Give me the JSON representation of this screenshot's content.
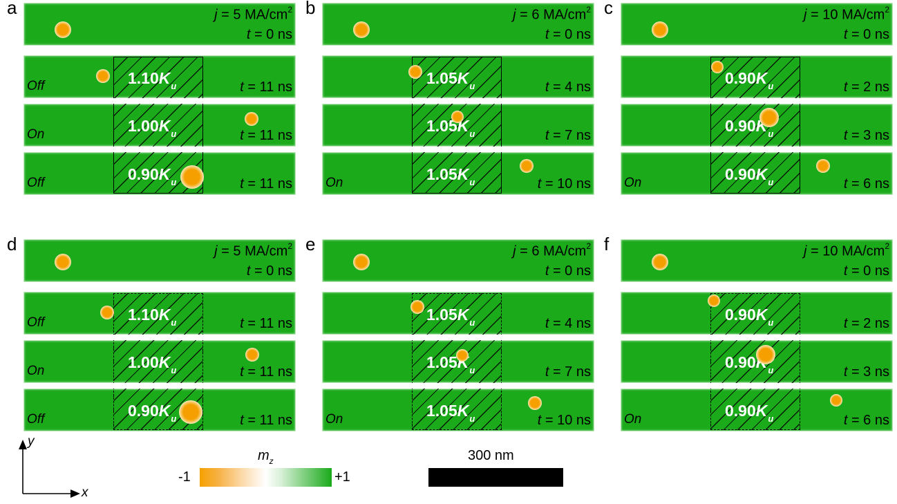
{
  "panels": [
    {
      "letter": "a",
      "j": "5",
      "dashed": false,
      "rows": [
        {
          "t": "0",
          "state": ""
        },
        {
          "t": "11",
          "state": "Off",
          "aniso": "1.10"
        },
        {
          "t": "11",
          "state": "On",
          "aniso": "1.00"
        },
        {
          "t": "11",
          "state": "Off",
          "aniso": "0.90"
        }
      ]
    },
    {
      "letter": "b",
      "j": "6",
      "dashed": false,
      "rows": [
        {
          "t": "0",
          "state": ""
        },
        {
          "t": "4",
          "state": "",
          "aniso": "1.05"
        },
        {
          "t": "7",
          "state": "",
          "aniso": "1.05"
        },
        {
          "t": "10",
          "state": "On",
          "aniso": "1.05"
        }
      ]
    },
    {
      "letter": "c",
      "j": "10",
      "dashed": false,
      "rows": [
        {
          "t": "0",
          "state": ""
        },
        {
          "t": "2",
          "state": "",
          "aniso": "0.90"
        },
        {
          "t": "3",
          "state": "",
          "aniso": "0.90"
        },
        {
          "t": "6",
          "state": "On",
          "aniso": "0.90"
        }
      ]
    },
    {
      "letter": "d",
      "j": "5",
      "dashed": true,
      "rows": [
        {
          "t": "0",
          "state": ""
        },
        {
          "t": "11",
          "state": "Off",
          "aniso": "1.10"
        },
        {
          "t": "11",
          "state": "On",
          "aniso": "1.00"
        },
        {
          "t": "11",
          "state": "Off",
          "aniso": "0.90"
        }
      ]
    },
    {
      "letter": "e",
      "j": "6",
      "dashed": true,
      "rows": [
        {
          "t": "0",
          "state": ""
        },
        {
          "t": "4",
          "state": "",
          "aniso": "1.05"
        },
        {
          "t": "7",
          "state": "",
          "aniso": "1.05"
        },
        {
          "t": "10",
          "state": "On",
          "aniso": "1.05"
        }
      ]
    },
    {
      "letter": "f",
      "j": "10",
      "dashed": true,
      "rows": [
        {
          "t": "0",
          "state": ""
        },
        {
          "t": "2",
          "state": "",
          "aniso": "0.90"
        },
        {
          "t": "3",
          "state": "",
          "aniso": "0.90"
        },
        {
          "t": "6",
          "state": "On",
          "aniso": "0.90"
        }
      ]
    }
  ],
  "labels": {
    "j_symbol": "j",
    "j_unit": " MA/cm",
    "j_unit_exp": "2",
    "t_symbol": "t",
    "t_unit": " ns",
    "equals": " = ",
    "k_symbol": "K",
    "k_sub": "u"
  },
  "axes": {
    "x": "x",
    "y": "y"
  },
  "colorbar": {
    "title": "m",
    "title_sub": "z",
    "min": "-1",
    "max": "+1",
    "color_min": "#f5a000",
    "color_mid": "#ffffff",
    "color_max": "#1aaa1a"
  },
  "scalebar": {
    "label": "300 nm"
  },
  "colors": {
    "film": "#1aaa1a",
    "skyrmion": "#f5a000",
    "region_border": "#000000"
  }
}
